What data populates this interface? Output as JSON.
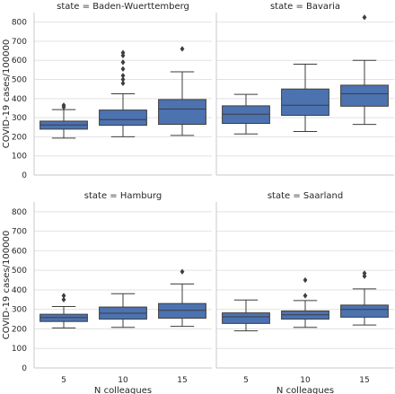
{
  "chart_data": {
    "type": "boxplot",
    "facet_by": "state",
    "x_label": "N colleagues",
    "y_label": "COVID-19 cases/100000",
    "categories": [
      "5",
      "10",
      "15"
    ],
    "y_ticks": [
      0,
      100,
      200,
      300,
      400,
      500,
      600,
      700,
      800
    ],
    "ylim": [
      0,
      850
    ],
    "grid": "horizontal",
    "box_color": "#4c72b0",
    "facets": [
      {
        "title": "state = Baden-Wuerttemberg",
        "boxes": [
          {
            "category": "5",
            "whisker_low": 193,
            "q1": 240,
            "median": 262,
            "q3": 282,
            "whisker_high": 342,
            "outliers": [
              355,
              365
            ]
          },
          {
            "category": "10",
            "whisker_low": 200,
            "q1": 260,
            "median": 290,
            "q3": 340,
            "whisker_high": 425,
            "outliers": [
              480,
              500,
              520,
              555,
              590,
              625,
              640
            ]
          },
          {
            "category": "15",
            "whisker_low": 207,
            "q1": 265,
            "median": 345,
            "q3": 395,
            "whisker_high": 540,
            "outliers": [
              660
            ]
          }
        ]
      },
      {
        "title": "state = Bavaria",
        "boxes": [
          {
            "category": "5",
            "whisker_low": 215,
            "q1": 270,
            "median": 318,
            "q3": 362,
            "whisker_high": 422,
            "outliers": []
          },
          {
            "category": "10",
            "whisker_low": 228,
            "q1": 312,
            "median": 365,
            "q3": 450,
            "whisker_high": 580,
            "outliers": []
          },
          {
            "category": "15",
            "whisker_low": 265,
            "q1": 360,
            "median": 425,
            "q3": 470,
            "whisker_high": 600,
            "outliers": [
              825
            ]
          }
        ]
      },
      {
        "title": "state = Hamburg",
        "boxes": [
          {
            "category": "5",
            "whisker_low": 205,
            "q1": 238,
            "median": 258,
            "q3": 275,
            "whisker_high": 315,
            "outliers": [
              350,
              370
            ]
          },
          {
            "category": "10",
            "whisker_low": 208,
            "q1": 250,
            "median": 280,
            "q3": 312,
            "whisker_high": 380,
            "outliers": []
          },
          {
            "category": "15",
            "whisker_low": 213,
            "q1": 255,
            "median": 295,
            "q3": 330,
            "whisker_high": 430,
            "outliers": [
              493
            ]
          }
        ]
      },
      {
        "title": "state = Saarland",
        "boxes": [
          {
            "category": "5",
            "whisker_low": 190,
            "q1": 228,
            "median": 262,
            "q3": 282,
            "whisker_high": 348,
            "outliers": []
          },
          {
            "category": "10",
            "whisker_low": 208,
            "q1": 250,
            "median": 272,
            "q3": 292,
            "whisker_high": 345,
            "outliers": [
              370,
              450
            ]
          },
          {
            "category": "15",
            "whisker_low": 220,
            "q1": 260,
            "median": 300,
            "q3": 322,
            "whisker_high": 405,
            "outliers": [
              470,
              485
            ]
          }
        ]
      }
    ]
  }
}
